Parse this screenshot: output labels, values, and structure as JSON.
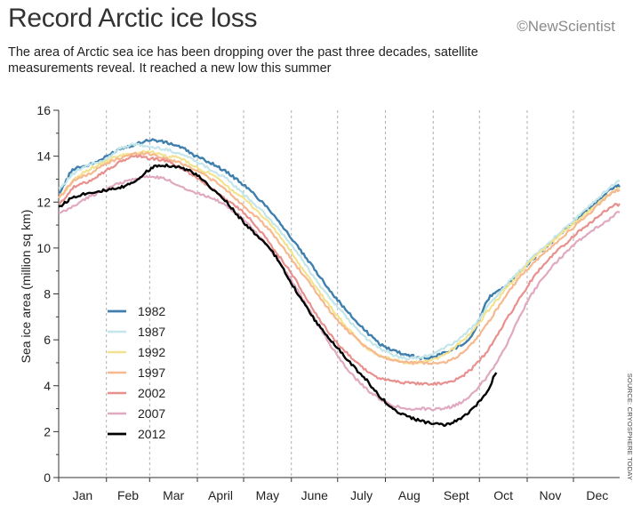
{
  "header": {
    "title": "Record Arctic ice loss",
    "brand": "©NewScientist",
    "subtitle": "The area of Arctic sea ice has been dropping over the past three decades, satellite measurements reveal. It reached a new low this summer"
  },
  "source": "SOURCE: CRYOSPHERE TODAY",
  "chart_data": {
    "type": "line",
    "title": "",
    "xlabel": "",
    "ylabel": "Sea ice area (million sq km)",
    "ylim": [
      0,
      16
    ],
    "yticks": [
      0,
      2,
      4,
      6,
      8,
      10,
      12,
      14,
      16
    ],
    "months": [
      "Jan",
      "Feb",
      "Mar",
      "April",
      "May",
      "June",
      "July",
      "Aug",
      "Sept",
      "Oct",
      "Nov",
      "Dec"
    ],
    "x_units": "day of year",
    "xlim": [
      1,
      365
    ],
    "grid": true,
    "legend_placement": "bottom-left",
    "series": [
      {
        "name": "1982",
        "color": "#3f7fae",
        "width": 2.4,
        "x": [
          1,
          10,
          20,
          30,
          40,
          50,
          60,
          70,
          80,
          90,
          100,
          110,
          120,
          130,
          140,
          150,
          160,
          170,
          180,
          190,
          200,
          210,
          220,
          230,
          240,
          250,
          260,
          270,
          280,
          290,
          300,
          310,
          320,
          330,
          340,
          350,
          360,
          365
        ],
        "y": [
          12.4,
          13.4,
          13.6,
          13.9,
          14.3,
          14.5,
          14.7,
          14.6,
          14.4,
          14.0,
          13.7,
          13.3,
          12.8,
          12.2,
          11.5,
          10.6,
          9.7,
          8.8,
          7.9,
          7.1,
          6.4,
          5.8,
          5.5,
          5.3,
          5.2,
          5.4,
          5.7,
          6.3,
          7.8,
          8.3,
          8.9,
          9.6,
          10.2,
          10.8,
          11.4,
          12.0,
          12.6,
          12.7
        ]
      },
      {
        "name": "1987",
        "color": "#c4e6ea",
        "width": 2.2,
        "x": [
          1,
          10,
          20,
          30,
          40,
          50,
          60,
          70,
          80,
          90,
          100,
          110,
          120,
          130,
          140,
          150,
          160,
          170,
          180,
          190,
          200,
          210,
          220,
          230,
          240,
          250,
          260,
          270,
          280,
          290,
          300,
          310,
          320,
          330,
          340,
          350,
          360,
          365
        ],
        "y": [
          12.6,
          13.2,
          13.6,
          13.8,
          14.3,
          14.5,
          14.4,
          14.3,
          14.1,
          13.8,
          13.4,
          13.0,
          12.4,
          11.8,
          11.1,
          10.3,
          9.4,
          8.4,
          7.6,
          6.8,
          6.1,
          5.6,
          5.3,
          5.2,
          5.3,
          5.6,
          6.0,
          6.6,
          7.5,
          8.3,
          9.0,
          9.7,
          10.3,
          10.9,
          11.5,
          12.1,
          12.7,
          12.9
        ]
      },
      {
        "name": "1992",
        "color": "#f3e38f",
        "width": 2.2,
        "x": [
          1,
          10,
          20,
          30,
          40,
          50,
          60,
          70,
          80,
          90,
          100,
          110,
          120,
          130,
          140,
          150,
          160,
          170,
          180,
          190,
          200,
          210,
          220,
          230,
          240,
          250,
          260,
          270,
          280,
          290,
          300,
          310,
          320,
          330,
          340,
          350,
          360,
          365
        ],
        "y": [
          12.2,
          12.9,
          13.4,
          13.7,
          14.0,
          14.1,
          14.2,
          14.0,
          13.9,
          13.5,
          13.2,
          12.7,
          12.2,
          11.6,
          10.9,
          10.0,
          9.0,
          8.1,
          7.2,
          6.4,
          5.7,
          5.3,
          5.1,
          5.0,
          5.1,
          5.3,
          5.8,
          6.4,
          7.3,
          8.1,
          8.9,
          9.6,
          10.2,
          10.8,
          11.3,
          11.9,
          12.4,
          12.6
        ]
      },
      {
        "name": "1997",
        "color": "#f5b88f",
        "width": 2.2,
        "x": [
          1,
          10,
          20,
          30,
          40,
          50,
          60,
          70,
          80,
          90,
          100,
          110,
          120,
          130,
          140,
          150,
          160,
          170,
          180,
          190,
          200,
          210,
          220,
          230,
          240,
          250,
          260,
          270,
          280,
          290,
          300,
          310,
          320,
          330,
          340,
          350,
          360,
          365
        ],
        "y": [
          12.2,
          12.9,
          13.2,
          13.6,
          13.9,
          14.1,
          14.1,
          13.9,
          13.7,
          13.4,
          13.0,
          12.5,
          11.9,
          11.3,
          10.6,
          9.7,
          8.8,
          7.9,
          7.0,
          6.3,
          5.7,
          5.3,
          5.1,
          5.0,
          5.0,
          5.0,
          5.3,
          5.9,
          6.8,
          7.8,
          8.7,
          9.4,
          10.0,
          10.6,
          11.2,
          11.8,
          12.4,
          12.5
        ]
      },
      {
        "name": "2002",
        "color": "#e8908d",
        "width": 2.2,
        "x": [
          1,
          10,
          20,
          30,
          40,
          50,
          60,
          70,
          80,
          90,
          100,
          110,
          120,
          130,
          140,
          150,
          160,
          170,
          180,
          190,
          200,
          210,
          220,
          230,
          240,
          250,
          260,
          270,
          280,
          290,
          300,
          310,
          320,
          330,
          340,
          350,
          360,
          365
        ],
        "y": [
          11.9,
          12.6,
          12.9,
          13.3,
          13.7,
          14.0,
          13.9,
          13.8,
          13.5,
          13.1,
          12.6,
          12.1,
          11.6,
          10.9,
          10.0,
          9.1,
          8.0,
          6.9,
          6.0,
          5.3,
          4.7,
          4.3,
          4.2,
          4.1,
          4.1,
          4.1,
          4.3,
          4.8,
          5.6,
          6.7,
          7.8,
          8.8,
          9.6,
          10.2,
          10.8,
          11.3,
          11.8,
          11.9
        ]
      },
      {
        "name": "2007",
        "color": "#e0a9c0",
        "width": 2.2,
        "x": [
          1,
          10,
          20,
          30,
          40,
          50,
          60,
          70,
          80,
          90,
          100,
          110,
          120,
          130,
          140,
          150,
          160,
          170,
          180,
          190,
          200,
          210,
          220,
          230,
          240,
          250,
          260,
          270,
          280,
          290,
          300,
          310,
          320,
          330,
          340,
          350,
          360,
          365
        ],
        "y": [
          11.5,
          11.8,
          12.2,
          12.5,
          12.8,
          13.0,
          13.1,
          13.0,
          12.7,
          12.4,
          12.2,
          11.8,
          11.3,
          10.6,
          9.8,
          8.8,
          7.7,
          6.6,
          5.5,
          4.6,
          3.9,
          3.4,
          3.1,
          3.0,
          3.0,
          3.0,
          3.2,
          3.7,
          4.5,
          5.6,
          7.0,
          8.2,
          9.1,
          9.8,
          10.4,
          10.9,
          11.3,
          11.6
        ]
      },
      {
        "name": "2012",
        "color": "#000000",
        "width": 2.4,
        "x": [
          1,
          10,
          20,
          30,
          40,
          50,
          60,
          65,
          70,
          80,
          90,
          100,
          110,
          120,
          130,
          140,
          150,
          160,
          170,
          180,
          190,
          200,
          210,
          220,
          230,
          240,
          250,
          260,
          270,
          280,
          285
        ],
        "y": [
          11.8,
          12.2,
          12.4,
          12.5,
          12.6,
          12.9,
          13.4,
          13.6,
          13.6,
          13.5,
          13.2,
          12.6,
          12.0,
          11.2,
          10.5,
          9.8,
          8.7,
          7.6,
          6.6,
          5.8,
          5.0,
          4.3,
          3.5,
          2.9,
          2.6,
          2.4,
          2.3,
          2.5,
          3.0,
          3.8,
          4.6
        ]
      }
    ]
  }
}
